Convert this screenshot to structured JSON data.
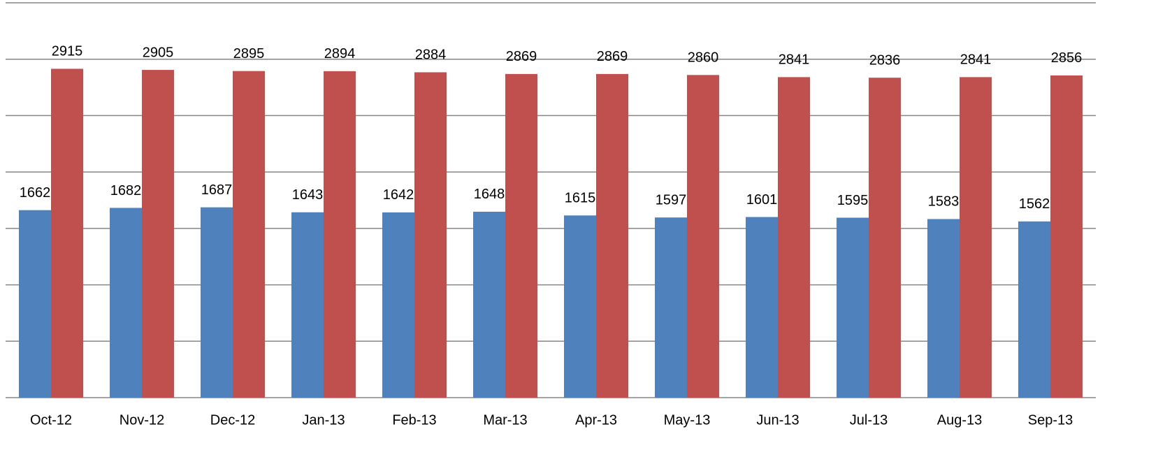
{
  "chart_data": {
    "type": "bar",
    "categories": [
      "Oct-12",
      "Nov-12",
      "Dec-12",
      "Jan-13",
      "Feb-13",
      "Mar-13",
      "Apr-13",
      "May-13",
      "Jun-13",
      "Jul-13",
      "Aug-13",
      "Sep-13"
    ],
    "series": [
      {
        "color": "#4f81bd",
        "values": [
          1662,
          1682,
          1687,
          1643,
          1642,
          1648,
          1615,
          1597,
          1601,
          1595,
          1583,
          1562
        ]
      },
      {
        "color": "#c0504d",
        "values": [
          2915,
          2905,
          2895,
          2894,
          2884,
          2869,
          2869,
          2860,
          2841,
          2836,
          2841,
          2856
        ]
      }
    ],
    "ylim": [
      0,
      3500
    ],
    "yticks": [
      0,
      500,
      1000,
      1500,
      2000,
      2500,
      3000,
      3500
    ],
    "grid": true
  }
}
